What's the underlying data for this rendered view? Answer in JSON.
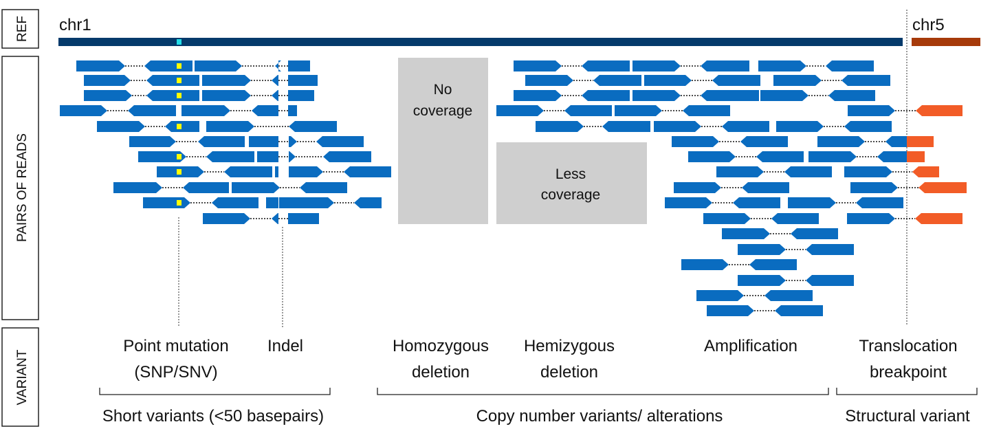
{
  "row_labels": {
    "ref": "REF",
    "pairs": "PAIRS OF READS",
    "variant": "VARIANT"
  },
  "chromosomes": {
    "chr1": "chr1",
    "chr5": "chr5"
  },
  "colors": {
    "chr1_bar": "#053a6b",
    "chr5_bar": "#a63a0a",
    "read": "#0a6cc0",
    "translocated_read": "#f25c27",
    "snp_marker": "#ffff00",
    "ref_snp_marker": "#22dde8",
    "coverage_box": "#cfcfcf"
  },
  "coverage_boxes": {
    "none": [
      "No",
      "coverage"
    ],
    "less": [
      "Less",
      "coverage"
    ]
  },
  "variants": [
    {
      "id": "point-mutation",
      "lines": [
        "Point mutation",
        "(SNP/SNV)"
      ]
    },
    {
      "id": "indel",
      "lines": [
        "Indel"
      ]
    },
    {
      "id": "homozygous-deletion",
      "lines": [
        "Homozygous",
        "deletion"
      ]
    },
    {
      "id": "hemizygous-deletion",
      "lines": [
        "Hemizygous",
        "deletion"
      ]
    },
    {
      "id": "amplification",
      "lines": [
        "Amplification"
      ]
    },
    {
      "id": "translocation-breakpoint",
      "lines": [
        "Translocation",
        "breakpoint"
      ]
    }
  ],
  "categories": [
    {
      "id": "short-variants",
      "label": "Short variants (<50 basepairs)"
    },
    {
      "id": "copy-number-variants",
      "label": "Copy  number variants/ alterations"
    },
    {
      "id": "structural-variant",
      "label": "Structural variant"
    }
  ]
}
